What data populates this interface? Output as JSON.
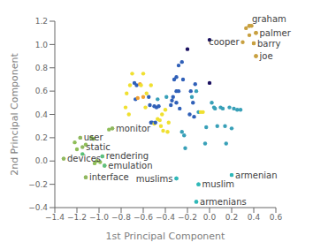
{
  "chart_data": {
    "type": "scatter",
    "xlabel": "1st Principal Component",
    "ylabel": "2nd Principal Component",
    "xlim": [
      -1.4,
      0.6
    ],
    "ylim": [
      -0.4,
      1.2
    ],
    "xticks": [
      {
        "value": -1.4,
        "label": "−1.4"
      },
      {
        "value": -1.2,
        "label": "−1.2"
      },
      {
        "value": -1.0,
        "label": "−1.0"
      },
      {
        "value": -0.8,
        "label": "−0.8"
      },
      {
        "value": -0.6,
        "label": "−0.6"
      },
      {
        "value": -0.4,
        "label": "−0.4"
      },
      {
        "value": -0.2,
        "label": "−0.2"
      },
      {
        "value": 0.0,
        "label": "0.0"
      },
      0.2,
      0.4,
      0.6
    ],
    "yticks": [
      {
        "value": -0.4,
        "label": "−0.4"
      },
      {
        "value": -0.2,
        "label": "−0.2"
      },
      {
        "value": 0.0,
        "label": "0.0"
      },
      0.2,
      0.4,
      0.6,
      0.8,
      {
        "value": 1.0,
        "label": "1.0"
      },
      1.2
    ],
    "points": [
      {
        "x": -1.32,
        "y": 0.02,
        "color": "#8fbe58"
      },
      {
        "x": -1.22,
        "y": 0.16,
        "color": "#8fbe58"
      },
      {
        "x": -1.2,
        "y": 0.1,
        "color": "#8fbe58"
      },
      {
        "x": -1.17,
        "y": 0.2,
        "color": "#8fbe58"
      },
      {
        "x": -1.15,
        "y": 0.06,
        "color": "#58c078"
      },
      {
        "x": -1.12,
        "y": 0.14,
        "color": "#8fbe58"
      },
      {
        "x": -1.12,
        "y": -0.14,
        "color": "#8fbe58"
      },
      {
        "x": -1.07,
        "y": 0.2,
        "color": "#8fbe58"
      },
      {
        "x": -1.05,
        "y": 0.19,
        "color": "#8fbe58"
      },
      {
        "x": -1.04,
        "y": -0.02,
        "color": "#8fbe58"
      },
      {
        "x": -1.02,
        "y": 0.0,
        "color": "#8fbe58"
      },
      {
        "x": -0.99,
        "y": -0.01,
        "color": "#8fbe58"
      },
      {
        "x": -0.97,
        "y": 0.04,
        "color": "#58c078"
      },
      {
        "x": -0.95,
        "y": -0.04,
        "color": "#8fbe58"
      },
      {
        "x": -0.91,
        "y": 0.27,
        "color": "#8fbe58"
      },
      {
        "x": -0.88,
        "y": 0.28,
        "color": "#8fbe58"
      },
      {
        "x": -0.76,
        "y": 0.46,
        "color": "#f0e030"
      },
      {
        "x": -0.75,
        "y": 0.58,
        "color": "#f0e030"
      },
      {
        "x": -0.73,
        "y": 0.4,
        "color": "#f0e030"
      },
      {
        "x": -0.72,
        "y": 0.65,
        "color": "#f0e030"
      },
      {
        "x": -0.7,
        "y": 0.75,
        "color": "#f0e030"
      },
      {
        "x": -0.68,
        "y": 0.67,
        "color": "#3060b8"
      },
      {
        "x": -0.67,
        "y": 0.53,
        "color": "#3060b8"
      },
      {
        "x": -0.66,
        "y": 0.65,
        "color": "#3060b8"
      },
      {
        "x": -0.65,
        "y": 0.54,
        "color": "#f0a030"
      },
      {
        "x": -0.63,
        "y": 0.66,
        "color": "#f0a030"
      },
      {
        "x": -0.62,
        "y": 0.65,
        "color": "#f0e030"
      },
      {
        "x": -0.6,
        "y": 0.75,
        "color": "#f0e030"
      },
      {
        "x": -0.6,
        "y": 0.55,
        "color": "#f0a030"
      },
      {
        "x": -0.58,
        "y": 0.46,
        "color": "#f0e030"
      },
      {
        "x": -0.57,
        "y": 0.58,
        "color": "#f0e030"
      },
      {
        "x": -0.55,
        "y": 0.55,
        "color": "#3060b8"
      },
      {
        "x": -0.54,
        "y": 0.48,
        "color": "#3060b8"
      },
      {
        "x": -0.53,
        "y": 0.65,
        "color": "#f0e030"
      },
      {
        "x": -0.53,
        "y": 0.33,
        "color": "#3060b8"
      },
      {
        "x": -0.52,
        "y": 0.33,
        "color": "#3060b8"
      },
      {
        "x": -0.5,
        "y": 0.47,
        "color": "#3060b8"
      },
      {
        "x": -0.5,
        "y": 0.32,
        "color": "#f0e030"
      },
      {
        "x": -0.49,
        "y": 0.33,
        "color": "#3060b8"
      },
      {
        "x": -0.48,
        "y": 0.46,
        "color": "#3060b8"
      },
      {
        "x": -0.47,
        "y": 0.53,
        "color": "#38a0b8"
      },
      {
        "x": -0.47,
        "y": 0.36,
        "color": "#f0e030"
      },
      {
        "x": -0.46,
        "y": 0.47,
        "color": "#3060b8"
      },
      {
        "x": -0.45,
        "y": 0.35,
        "color": "#f0e030"
      },
      {
        "x": -0.44,
        "y": 0.3,
        "color": "#f0e030"
      },
      {
        "x": -0.43,
        "y": 0.4,
        "color": "#f0e030"
      },
      {
        "x": -0.42,
        "y": 0.26,
        "color": "#f0e030"
      },
      {
        "x": -0.4,
        "y": 0.44,
        "color": "#f0e030"
      },
      {
        "x": -0.39,
        "y": 0.55,
        "color": "#38a0b8"
      },
      {
        "x": -0.38,
        "y": 0.25,
        "color": "#f0e030"
      },
      {
        "x": -0.37,
        "y": 0.33,
        "color": "#f0e030"
      },
      {
        "x": -0.35,
        "y": 0.48,
        "color": "#3060b8"
      },
      {
        "x": -0.34,
        "y": 0.52,
        "color": "#3060b8"
      },
      {
        "x": -0.33,
        "y": 0.55,
        "color": "#3060b8"
      },
      {
        "x": -0.32,
        "y": 0.7,
        "color": "#3060b8"
      },
      {
        "x": -0.3,
        "y": 0.72,
        "color": "#3060b8"
      },
      {
        "x": -0.3,
        "y": 0.6,
        "color": "#3060b8"
      },
      {
        "x": -0.3,
        "y": 0.5,
        "color": "#3060b8"
      },
      {
        "x": -0.28,
        "y": 0.82,
        "color": "#3060b8"
      },
      {
        "x": -0.28,
        "y": 0.6,
        "color": "#3060b8"
      },
      {
        "x": -0.27,
        "y": 0.45,
        "color": "#3060b8"
      },
      {
        "x": -0.25,
        "y": 0.85,
        "color": "#3060b8"
      },
      {
        "x": -0.25,
        "y": 0.25,
        "color": "#38a0b8"
      },
      {
        "x": -0.24,
        "y": 0.7,
        "color": "#3060b8"
      },
      {
        "x": -0.23,
        "y": 0.22,
        "color": "#38a0b8"
      },
      {
        "x": -0.22,
        "y": 0.11,
        "color": "#38a0b8"
      },
      {
        "x": -0.2,
        "y": 0.96,
        "color": "#1a1060"
      },
      {
        "x": -0.18,
        "y": 0.4,
        "color": "#3060b8"
      },
      {
        "x": -0.17,
        "y": 0.6,
        "color": "#3060b8"
      },
      {
        "x": -0.16,
        "y": 0.55,
        "color": "#38a0b8"
      },
      {
        "x": -0.15,
        "y": 0.5,
        "color": "#3060b8"
      },
      {
        "x": -0.14,
        "y": 0.38,
        "color": "#3060b8"
      },
      {
        "x": -0.13,
        "y": 0.66,
        "color": "#3060b8"
      },
      {
        "x": -0.12,
        "y": 0.6,
        "color": "#38a0b8"
      },
      {
        "x": -0.1,
        "y": 0.42,
        "color": "#38a0b8"
      },
      {
        "x": -0.08,
        "y": 0.42,
        "color": "#f0e030"
      },
      {
        "x": -0.06,
        "y": 0.42,
        "color": "#f0e030"
      },
      {
        "x": -0.04,
        "y": 0.15,
        "color": "#38a0b8"
      },
      {
        "x": -0.03,
        "y": 0.29,
        "color": "#38a0b8"
      },
      {
        "x": 0.0,
        "y": 1.04,
        "color": "#1a1060"
      },
      {
        "x": 0.0,
        "y": 0.67,
        "color": "#1a1060"
      },
      {
        "x": 0.02,
        "y": 0.5,
        "color": "#38a0b8"
      },
      {
        "x": 0.04,
        "y": 0.46,
        "color": "#38a0b8"
      },
      {
        "x": 0.05,
        "y": 0.45,
        "color": "#38a0b8"
      },
      {
        "x": 0.07,
        "y": 0.3,
        "color": "#38a0b8"
      },
      {
        "x": 0.1,
        "y": 0.46,
        "color": "#38a0b8"
      },
      {
        "x": 0.12,
        "y": 0.45,
        "color": "#38a0b8"
      },
      {
        "x": 0.14,
        "y": 0.3,
        "color": "#38a0b8"
      },
      {
        "x": 0.15,
        "y": 0.15,
        "color": "#38a0b8"
      },
      {
        "x": 0.18,
        "y": 0.46,
        "color": "#38a0b8"
      },
      {
        "x": 0.2,
        "y": 0.28,
        "color": "#38a0b8"
      },
      {
        "x": 0.22,
        "y": 0.45,
        "color": "#38a0b8"
      },
      {
        "x": 0.25,
        "y": 0.44,
        "color": "#38a0b8"
      },
      {
        "x": 0.28,
        "y": 0.44,
        "color": "#38a0b8"
      },
      {
        "x": -0.3,
        "y": -0.15,
        "color": "#30b8b8"
      },
      {
        "x": -0.1,
        "y": -0.2,
        "color": "#30b8b8"
      },
      {
        "x": -0.12,
        "y": -0.35,
        "color": "#30b8b8"
      },
      {
        "x": 0.2,
        "y": -0.12,
        "color": "#30b8b8"
      },
      {
        "x": 0.33,
        "y": 1.14,
        "color": "#c8a040"
      },
      {
        "x": 0.36,
        "y": 1.16,
        "color": "#c8a040"
      },
      {
        "x": 0.36,
        "y": 1.08,
        "color": "#c8a040"
      },
      {
        "x": 0.38,
        "y": 1.16,
        "color": "#c8a040"
      },
      {
        "x": 0.4,
        "y": 1.01,
        "color": "#c8a040"
      },
      {
        "x": 0.42,
        "y": 1.1,
        "color": "#c8a040"
      },
      {
        "x": 0.42,
        "y": 0.9,
        "color": "#c8a040"
      }
    ],
    "annotations": [
      {
        "x": 0.36,
        "y": 1.16,
        "label": "graham",
        "color": "#c8a040"
      },
      {
        "x": 0.42,
        "y": 1.1,
        "label": "palmer",
        "color": "#c8a040"
      },
      {
        "x": 0.3,
        "y": 1.02,
        "label": "cooper",
        "color": "#c8a040"
      },
      {
        "x": 0.4,
        "y": 1.01,
        "label": "barry",
        "color": "#c8a040"
      },
      {
        "x": 0.42,
        "y": 0.9,
        "label": "joe",
        "color": "#c8a040"
      },
      {
        "x": -0.88,
        "y": 0.28,
        "label": "monitor",
        "color": "#90b860"
      },
      {
        "x": -1.17,
        "y": 0.2,
        "label": "user",
        "color": "#90b860"
      },
      {
        "x": -1.15,
        "y": 0.12,
        "label": "static",
        "color": "#90b860"
      },
      {
        "x": -1.32,
        "y": 0.02,
        "label": "devices",
        "color": "#90b860"
      },
      {
        "x": -0.97,
        "y": 0.04,
        "label": "rendering",
        "color": "#60c080"
      },
      {
        "x": -0.95,
        "y": -0.04,
        "label": "emulation",
        "color": "#60c080"
      },
      {
        "x": -1.12,
        "y": -0.14,
        "label": "interface",
        "color": "#90b860"
      },
      {
        "x": -0.3,
        "y": -0.15,
        "label": "muslims",
        "color": "#30b8b8"
      },
      {
        "x": -0.1,
        "y": -0.2,
        "label": "muslim",
        "color": "#30b8b8"
      },
      {
        "x": -0.12,
        "y": -0.35,
        "label": "armenians",
        "color": "#30b8b8"
      },
      {
        "x": 0.2,
        "y": -0.12,
        "label": "armenian",
        "color": "#30b8b8"
      }
    ]
  }
}
